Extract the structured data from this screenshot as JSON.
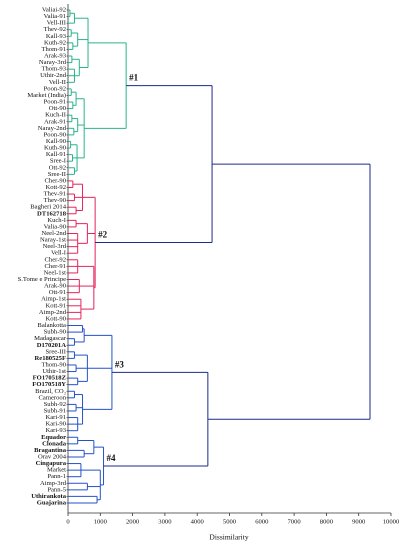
{
  "chart_data": {
    "type": "dendrogram",
    "xlabel": "Dissimilarity",
    "xlim": [
      0,
      10000
    ],
    "xticks": [
      0,
      1000,
      2000,
      3000,
      4000,
      5000,
      6000,
      7000,
      8000,
      9000,
      10000
    ],
    "tree": {
      "height": 9350,
      "color": "#1c2a8c",
      "children": [
        {
          "height": 4460,
          "children": [
            {
              "height": 1800,
              "color": "#2ab38b",
              "label": "#1",
              "children": [
                {
                  "height": 620,
                  "children": [
                    {
                      "height": 200,
                      "children": [
                        {
                          "height": 60,
                          "children": [
                            {
                              "label": "Valiai-92"
                            },
                            {
                              "label": "Valia-91"
                            }
                          ]
                        },
                        {
                          "label": "Vell-III"
                        }
                      ]
                    },
                    {
                      "height": 300,
                      "children": [
                        {
                          "height": 100,
                          "children": [
                            {
                              "label": "Thev-92"
                            },
                            {
                              "label": "Kall-93"
                            }
                          ]
                        },
                        {
                          "height": 150,
                          "children": [
                            {
                              "label": "Kuth-92"
                            },
                            {
                              "label": "Thom-91"
                            }
                          ]
                        }
                      ]
                    },
                    {
                      "height": 350,
                      "children": [
                        {
                          "height": 120,
                          "children": [
                            {
                              "label": "Arak-93"
                            },
                            {
                              "label": "Naray-3rd"
                            }
                          ]
                        },
                        {
                          "height": 200,
                          "children": [
                            {
                              "label": "Thom-93"
                            },
                            {
                              "label": "Uthir-2nd"
                            },
                            {
                              "label": "Vell-II"
                            }
                          ]
                        }
                      ]
                    }
                  ]
                },
                {
                  "height": 500,
                  "children": [
                    {
                      "height": 250,
                      "children": [
                        {
                          "height": 100,
                          "children": [
                            {
                              "label": "Poon-92"
                            },
                            {
                              "label": "Market (India)"
                            }
                          ]
                        },
                        {
                          "height": 150,
                          "children": [
                            {
                              "label": "Poon-91"
                            },
                            {
                              "label": "Ott-90"
                            }
                          ]
                        }
                      ]
                    },
                    {
                      "height": 300,
                      "children": [
                        {
                          "height": 120,
                          "children": [
                            {
                              "label": "Kuch-II"
                            },
                            {
                              "label": "Arak-91"
                            }
                          ]
                        },
                        {
                          "height": 180,
                          "children": [
                            {
                              "label": "Naray-2nd"
                            },
                            {
                              "label": "Poon-90"
                            }
                          ]
                        }
                      ]
                    },
                    {
                      "height": 280,
                      "children": [
                        {
                          "height": 80,
                          "children": [
                            {
                              "label": "Kall-90"
                            },
                            {
                              "label": "Kuth-90"
                            }
                          ]
                        },
                        {
                          "height": 140,
                          "children": [
                            {
                              "label": "Kall-91"
                            },
                            {
                              "label": "Sree-I"
                            }
                          ]
                        },
                        {
                          "height": 200,
                          "children": [
                            {
                              "label": "Ott-92"
                            },
                            {
                              "label": "Sree-II"
                            }
                          ]
                        }
                      ]
                    }
                  ]
                }
              ]
            },
            {
              "height": 840,
              "color": "#e3245c",
              "label": "#2",
              "children": [
                {
                  "height": 450,
                  "children": [
                    {
                      "height": 150,
                      "children": [
                        {
                          "label": "Cher-90"
                        },
                        {
                          "label": "Kott-92"
                        }
                      ]
                    },
                    {
                      "height": 200,
                      "children": [
                        {
                          "label": "Thev-91"
                        },
                        {
                          "label": "Thev-90"
                        }
                      ]
                    },
                    {
                      "height": 250,
                      "children": [
                        {
                          "label": "Bagheri 2014"
                        },
                        {
                          "label": "DT162718",
                          "bold": true
                        }
                      ]
                    }
                  ]
                },
                {
                  "height": 600,
                  "children": [
                    {
                      "height": 250,
                      "children": [
                        {
                          "label": "Kuch-I"
                        },
                        {
                          "label": "Valia-90"
                        }
                      ]
                    },
                    {
                      "height": 300,
                      "children": [
                        {
                          "label": "Neel-2nd"
                        },
                        {
                          "label": "Naray-1st"
                        },
                        {
                          "label": "Neel-3rd"
                        },
                        {
                          "label": "Vell-I"
                        }
                      ]
                    }
                  ]
                },
                {
                  "height": 800,
                  "children": [
                    {
                      "height": 300,
                      "children": [
                        {
                          "label": "Cher-92"
                        },
                        {
                          "label": "Cher-91"
                        },
                        {
                          "label": "Neel-1st"
                        }
                      ]
                    },
                    {
                      "height": 350,
                      "children": [
                        {
                          "label": "S.Tome e Principe"
                        },
                        {
                          "label": "Arak-90"
                        },
                        {
                          "label": "Ott-91"
                        }
                      ]
                    },
                    {
                      "height": 400,
                      "children": [
                        {
                          "label": "Aimp-1st"
                        },
                        {
                          "label": "Kott-91"
                        },
                        {
                          "label": "Aimp-2nd"
                        },
                        {
                          "label": "Kott-90"
                        }
                      ]
                    }
                  ]
                }
              ]
            }
          ]
        },
        {
          "height": 4330,
          "children": [
            {
              "height": 1360,
              "color": "#2352c9",
              "label": "#3",
              "children": [
                {
                  "height": 500,
                  "children": [
                    {
                      "height": 450,
                      "children": [
                        {
                          "label": "Balankotta"
                        },
                        {
                          "label": "Subh-90"
                        }
                      ]
                    },
                    {
                      "height": 200,
                      "children": [
                        {
                          "label": "Madagascar"
                        },
                        {
                          "label": "D170201A",
                          "bold": true
                        }
                      ]
                    }
                  ]
                },
                {
                  "height": 600,
                  "children": [
                    {
                      "height": 200,
                      "children": [
                        {
                          "label": "Sree-III"
                        },
                        {
                          "label": "Re180525F",
                          "bold": true
                        }
                      ]
                    },
                    {
                      "height": 250,
                      "children": [
                        {
                          "label": "Thom-90"
                        },
                        {
                          "label": "Uthir-1st"
                        }
                      ]
                    },
                    {
                      "height": 300,
                      "children": [
                        {
                          "label": "FO170518Z",
                          "bold": true
                        },
                        {
                          "label": "FO170518Y",
                          "bold": true
                        }
                      ]
                    }
                  ]
                },
                {
                  "height": 450,
                  "children": [
                    {
                      "height": 200,
                      "children": [
                        {
                          "label": "Brazil, CO₂"
                        },
                        {
                          "label": "Cameroon"
                        }
                      ]
                    },
                    {
                      "height": 250,
                      "children": [
                        {
                          "label": "Subh-92"
                        },
                        {
                          "label": "Subh-91"
                        }
                      ]
                    },
                    {
                      "height": 300,
                      "children": [
                        {
                          "label": "Kari-91"
                        },
                        {
                          "label": "Kari-90"
                        },
                        {
                          "label": "Kari-93"
                        }
                      ]
                    }
                  ]
                }
              ]
            },
            {
              "height": 1100,
              "color": "#2352c9",
              "label": "#4",
              "children": [
                {
                  "height": 800,
                  "children": [
                    {
                      "height": 300,
                      "children": [
                        {
                          "label": "Equador",
                          "bold": true
                        },
                        {
                          "label": "Clonada",
                          "bold": true
                        }
                      ]
                    },
                    {
                      "height": 500,
                      "children": [
                        {
                          "label": "Bragantina",
                          "bold": true
                        },
                        {
                          "label": "Orav 2004"
                        }
                      ]
                    }
                  ]
                },
                {
                  "height": 1000,
                  "children": [
                    {
                      "height": 400,
                      "children": [
                        {
                          "label": "Cingapura",
                          "bold": true
                        },
                        {
                          "label": "Market"
                        },
                        {
                          "label": "Pann-1"
                        }
                      ]
                    },
                    {
                      "height": 600,
                      "children": [
                        {
                          "label": "Aimp-3rd"
                        },
                        {
                          "label": "Pann-5"
                        }
                      ]
                    },
                    {
                      "height": 900,
                      "children": [
                        {
                          "label": "Uthirankota",
                          "bold": true
                        },
                        {
                          "label": "Guajarina",
                          "bold": true
                        }
                      ]
                    }
                  ]
                }
              ]
            }
          ]
        }
      ]
    }
  }
}
